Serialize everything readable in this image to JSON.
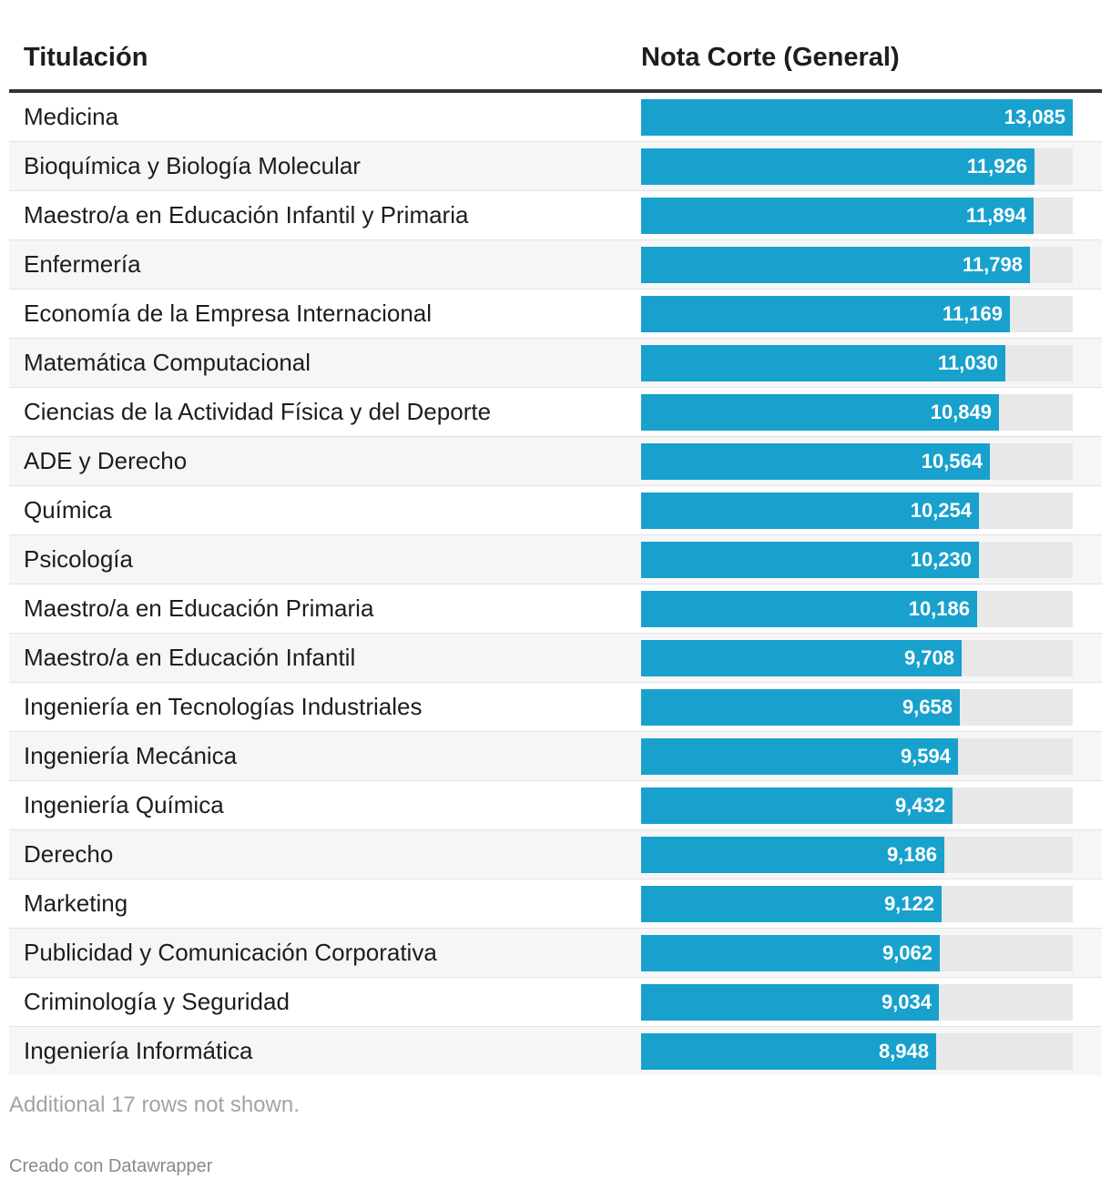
{
  "table": {
    "header_name": "Titulación",
    "header_value": "Nota Corte (General)"
  },
  "colors": {
    "bar": "#18a1cd",
    "track": "#e8e8e8"
  },
  "chart_data": {
    "type": "table",
    "columns": [
      "Titulación",
      "Nota Corte (General)"
    ],
    "value_max": 13.085,
    "rows": [
      {
        "name": "Medicina",
        "value": 13.085,
        "label": "13,085"
      },
      {
        "name": "Bioquímica y Biología Molecular",
        "value": 11.926,
        "label": "11,926"
      },
      {
        "name": "Maestro/a en Educación Infantil y Primaria",
        "value": 11.894,
        "label": "11,894"
      },
      {
        "name": "Enfermería",
        "value": 11.798,
        "label": "11,798"
      },
      {
        "name": "Economía de la Empresa Internacional",
        "value": 11.169,
        "label": "11,169"
      },
      {
        "name": "Matemática Computacional",
        "value": 11.03,
        "label": "11,030"
      },
      {
        "name": "Ciencias de la Actividad Física y del Deporte",
        "value": 10.849,
        "label": "10,849"
      },
      {
        "name": "ADE y Derecho",
        "value": 10.564,
        "label": "10,564"
      },
      {
        "name": "Química",
        "value": 10.254,
        "label": "10,254"
      },
      {
        "name": "Psicología",
        "value": 10.23,
        "label": "10,230"
      },
      {
        "name": "Maestro/a en Educación Primaria",
        "value": 10.186,
        "label": "10,186"
      },
      {
        "name": "Maestro/a en Educación Infantil",
        "value": 9.708,
        "label": "9,708"
      },
      {
        "name": "Ingeniería en Tecnologías Industriales",
        "value": 9.658,
        "label": "9,658"
      },
      {
        "name": "Ingeniería Mecánica",
        "value": 9.594,
        "label": "9,594"
      },
      {
        "name": "Ingeniería Química",
        "value": 9.432,
        "label": "9,432"
      },
      {
        "name": "Derecho",
        "value": 9.186,
        "label": "9,186"
      },
      {
        "name": "Marketing",
        "value": 9.122,
        "label": "9,122"
      },
      {
        "name": "Publicidad y Comunicación Corporativa",
        "value": 9.062,
        "label": "9,062"
      },
      {
        "name": "Criminología y Seguridad",
        "value": 9.034,
        "label": "9,034"
      },
      {
        "name": "Ingeniería Informática",
        "value": 8.948,
        "label": "8,948"
      }
    ]
  },
  "footer": {
    "note": "Additional 17 rows not shown.",
    "credit": "Creado con Datawrapper"
  }
}
